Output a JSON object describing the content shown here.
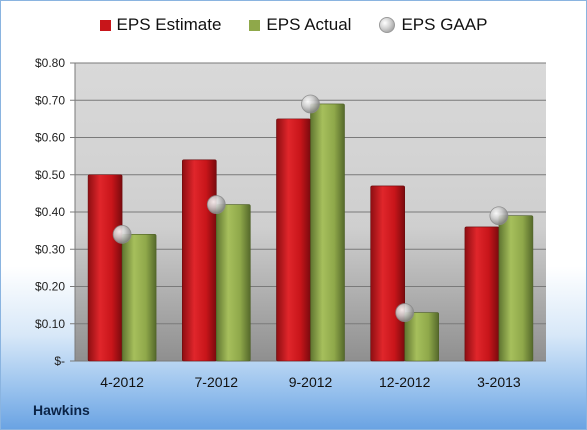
{
  "legend": {
    "estimate": "EPS Estimate",
    "actual": "EPS Actual",
    "gaap": "EPS GAAP"
  },
  "company": "Hawkins",
  "chart_data": {
    "type": "bar",
    "categories": [
      "4-2012",
      "7-2012",
      "9-2012",
      "12-2012",
      "3-2013"
    ],
    "series": [
      {
        "name": "EPS Estimate",
        "values": [
          0.5,
          0.54,
          0.65,
          0.47,
          0.36
        ],
        "color": "#c8151a"
      },
      {
        "name": "EPS Actual",
        "values": [
          0.34,
          0.42,
          0.69,
          0.13,
          0.39
        ],
        "color": "#8fa84a"
      },
      {
        "name": "EPS GAAP",
        "values": [
          0.34,
          0.42,
          0.69,
          0.13,
          0.39
        ],
        "marker": "sphere",
        "color": "#b8b8b8"
      }
    ],
    "ylim": [
      0,
      0.8
    ],
    "ytick_values": [
      0,
      0.1,
      0.2,
      0.3,
      0.4,
      0.5,
      0.6,
      0.7,
      0.8
    ],
    "ytick_labels": [
      "$-",
      "$0.10",
      "$0.20",
      "$0.30",
      "$0.40",
      "$0.50",
      "$0.60",
      "$0.70",
      "$0.80"
    ],
    "grid": true,
    "legend_position": "top"
  }
}
